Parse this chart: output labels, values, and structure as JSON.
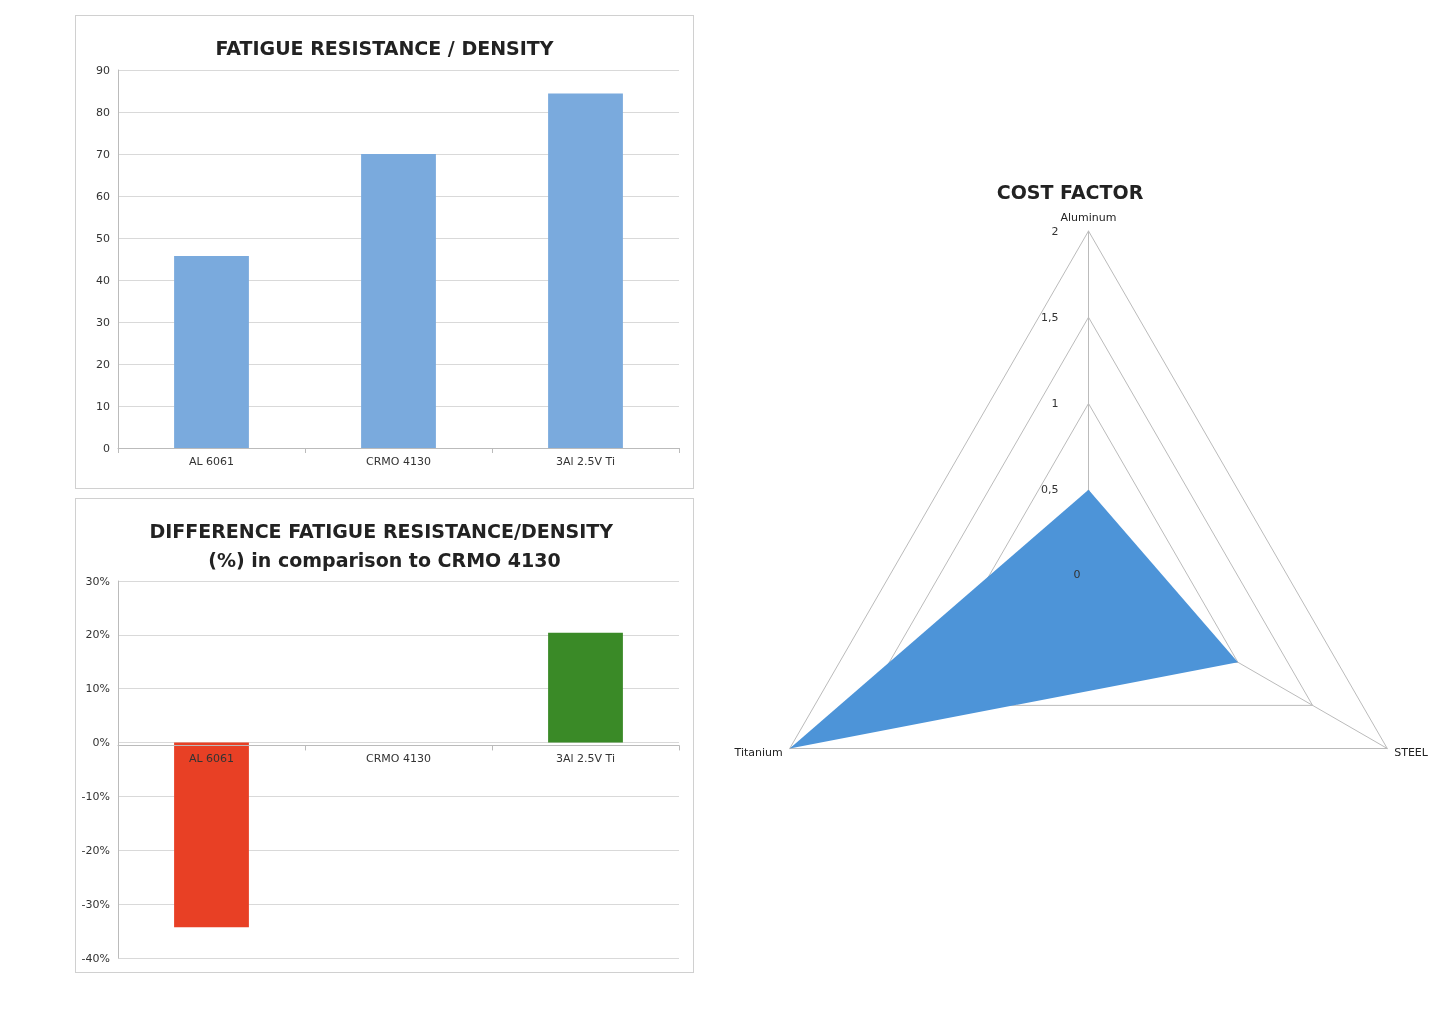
{
  "chart_data": [
    {
      "type": "bar",
      "title": "FATIGUE RESISTANCE / DENSITY",
      "categories": [
        "AL 6061",
        "CRMO 4130",
        "3Al 2.5V Ti"
      ],
      "values": [
        45.7,
        70,
        84.4
      ],
      "color": "#7aaadd",
      "ylim": [
        0,
        90
      ],
      "yticks": [
        0,
        10,
        20,
        30,
        40,
        50,
        60,
        70,
        80,
        90
      ],
      "grid": "y"
    },
    {
      "type": "bar",
      "title": "DIFFERENCE FATIGUE RESISTANCE/DENSITY (%) in comparison to CRMO 4130",
      "categories": [
        "AL 6061",
        "CRMO 4130",
        "3Al 2.5V Ti"
      ],
      "values": [
        -34.3,
        0,
        20.4
      ],
      "colors": [
        "#e84025",
        null,
        "#3a8a27"
      ],
      "ylim": [
        -40,
        30
      ],
      "yticks": [
        {
          "value": -40,
          "label": "-40%"
        },
        {
          "value": -30,
          "label": "-30%"
        },
        {
          "value": -20,
          "label": "-20%"
        },
        {
          "value": -10,
          "label": "-10%"
        },
        {
          "value": 0,
          "label": "0%"
        },
        {
          "value": 10,
          "label": "10%"
        },
        {
          "value": 20,
          "label": "20%"
        },
        {
          "value": 30,
          "label": "30%"
        }
      ],
      "grid": "y"
    },
    {
      "type": "radar",
      "title": "COST FACTOR",
      "categories": [
        "Aluminum",
        "STEEL",
        "Titanium"
      ],
      "series": [
        {
          "color": "#4d94d8",
          "values": [
            0.5,
            1,
            2
          ]
        }
      ],
      "ylim": [
        0,
        2
      ],
      "yticks": [
        0,
        {
          "value": 0.5,
          "label": "0,5"
        },
        1,
        {
          "value": 1.5,
          "label": "1,5"
        },
        2
      ],
      "grid": true
    }
  ]
}
